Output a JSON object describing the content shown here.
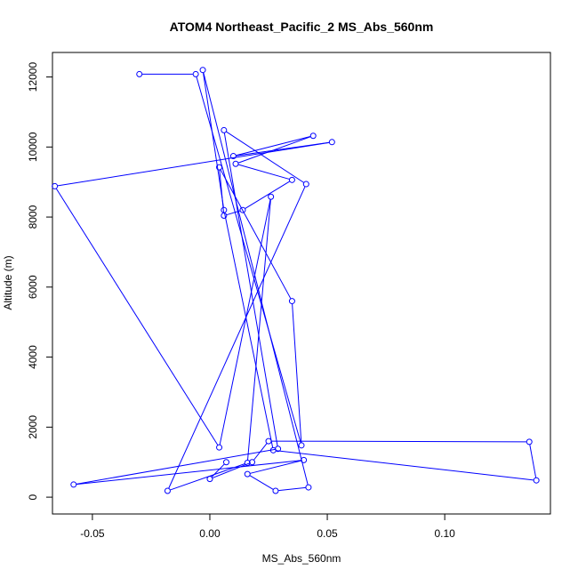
{
  "chart_data": {
    "type": "line",
    "title": "ATOM4 Northeast_Pacific_2 MS_Abs_560nm",
    "xlabel": "MS_Abs_560nm",
    "ylabel": "Altitude (m)",
    "xlim": [
      -0.067,
      0.145
    ],
    "ylim": [
      -480,
      12700
    ],
    "xticks": [
      -0.05,
      0.0,
      0.05,
      0.1
    ],
    "xtick_labels": [
      "-0.05",
      "0.00",
      "0.05",
      "0.10"
    ],
    "yticks": [
      0,
      2000,
      4000,
      6000,
      8000,
      10000,
      12000
    ],
    "ytick_labels": [
      "0",
      "2000",
      "4000",
      "6000",
      "8000",
      "10000",
      "12000"
    ],
    "grid": false,
    "marker": "open-circle",
    "color": "#0000ff",
    "series": [
      {
        "x": [
          -0.03,
          -0.006,
          0.039,
          0.035,
          0.004,
          0.006,
          0.014,
          0.035,
          0.011,
          0.044,
          0.01,
          0.052,
          -0.066,
          0.004,
          0.026,
          0.016,
          -0.018,
          0.041,
          0.006,
          0.029,
          -0.058,
          0.04,
          0.016,
          0.028,
          0.042,
          -0.003,
          0.006,
          0.027,
          0.139,
          0.136,
          0.025,
          0.018,
          0.0,
          0.007
        ],
        "y": [
          12080,
          12080,
          1480,
          5600,
          9420,
          8040,
          8200,
          9060,
          9520,
          10320,
          9740,
          10140,
          8880,
          1420,
          8580,
          980,
          180,
          8940,
          10480,
          1380,
          360,
          1060,
          660,
          180,
          280,
          12200,
          8200,
          1340,
          480,
          1580,
          1600,
          1000,
          520,
          1000
        ]
      }
    ]
  }
}
